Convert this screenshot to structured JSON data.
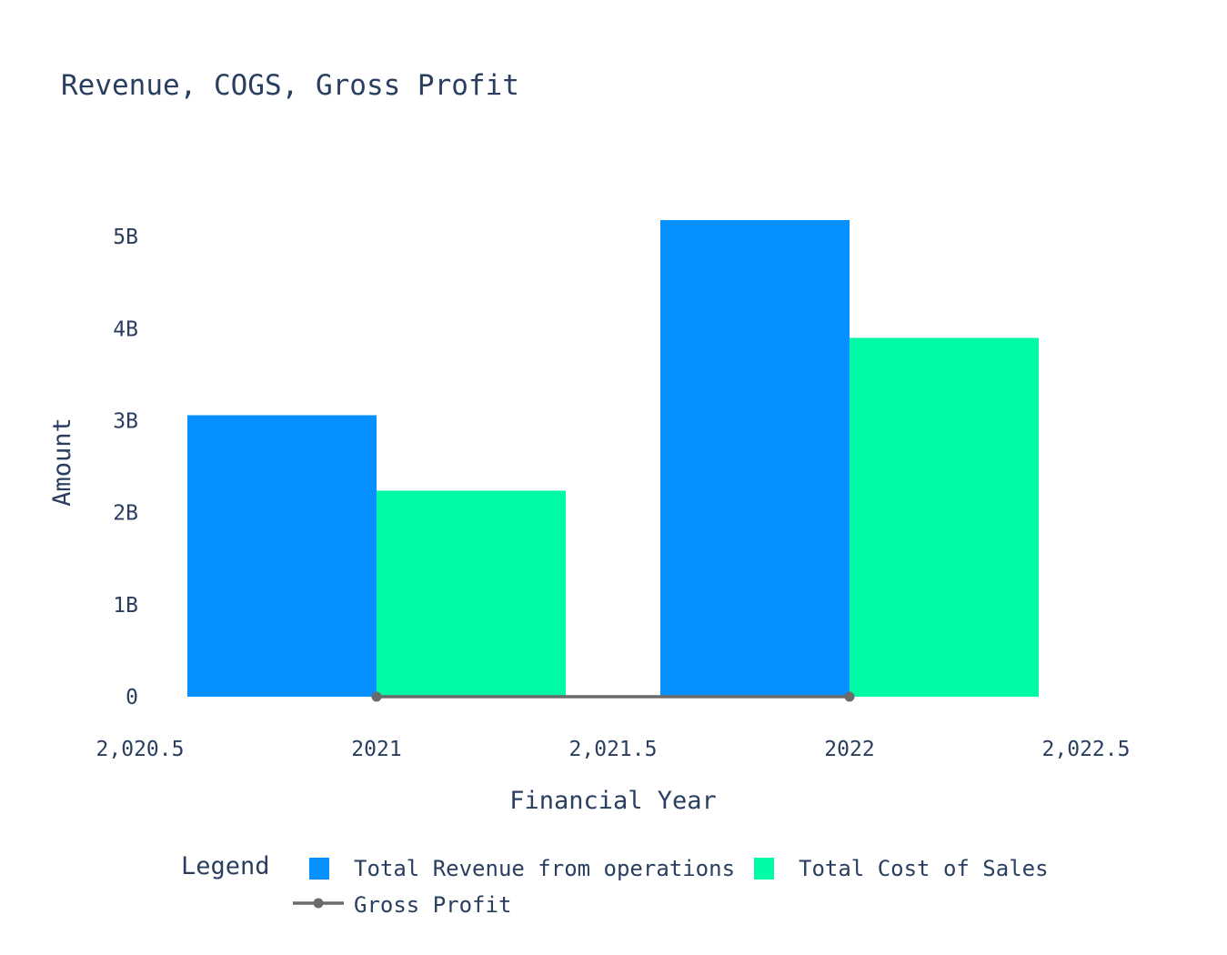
{
  "chart_data": {
    "type": "bar",
    "title": "Revenue, COGS, Gross Profit",
    "xlabel": "Financial Year",
    "ylabel": "Amount",
    "x": [
      2021,
      2022
    ],
    "xlim": [
      2020.5,
      2022.5
    ],
    "ylim": [
      0,
      5.2
    ],
    "y_unit": "B",
    "xticks": [
      2020.5,
      2021,
      2021.5,
      2022,
      2022.5
    ],
    "xtick_labels": [
      "2,020.5",
      "2021",
      "2,021.5",
      "2022",
      "2,022.5"
    ],
    "yticks": [
      0,
      1,
      2,
      3,
      4,
      5
    ],
    "ytick_labels": [
      "0",
      "1B",
      "2B",
      "3B",
      "4B",
      "5B"
    ],
    "grid": false,
    "legend": {
      "title": "Legend",
      "position": "bottom"
    },
    "series": [
      {
        "name": "Total Revenue from operations",
        "kind": "bar",
        "color": "#0790ff",
        "values": [
          3.06,
          5.18
        ]
      },
      {
        "name": "Total Cost of Sales",
        "kind": "bar",
        "color": "#00faa6",
        "values": [
          2.24,
          3.9
        ]
      },
      {
        "name": "Gross Profit",
        "kind": "line",
        "color": "#6b6b6b",
        "values": [
          0,
          0
        ]
      }
    ]
  }
}
